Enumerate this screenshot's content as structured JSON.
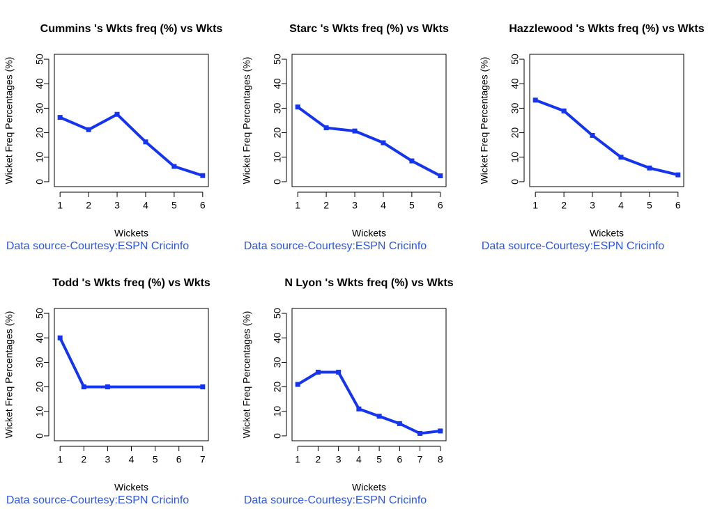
{
  "chart_data": [
    {
      "type": "line",
      "title": "Cummins 's Wkts freq (%) vs Wkts",
      "x_label": "Wickets",
      "y_label": "Wicket Freq Percentages (%)",
      "caption": "Data source-Courtesy:ESPN Cricinfo",
      "x": [
        1,
        2,
        3,
        4,
        5,
        6
      ],
      "series": [
        {
          "name": "Cummins",
          "color": "#1534f0",
          "values": [
            26.25,
            21.25,
            27.5,
            16.25,
            6.25,
            2.5
          ]
        }
      ],
      "xlim": [
        0.8,
        6.2
      ],
      "xticks": [
        1,
        2,
        3,
        4,
        5,
        6
      ],
      "ylim": [
        -2,
        52
      ],
      "yticks": [
        0,
        10,
        20,
        30,
        40,
        50
      ]
    },
    {
      "type": "line",
      "title": "Starc 's Wkts freq (%) vs Wkts",
      "x_label": "Wickets",
      "y_label": "Wicket Freq Percentages (%)",
      "caption": "Data source-Courtesy:ESPN Cricinfo",
      "x": [
        1,
        2,
        3,
        4,
        5,
        6
      ],
      "series": [
        {
          "name": "Starc",
          "color": "#1534f0",
          "values": [
            30.5,
            22,
            20.7,
            15.9,
            8.5,
            2.4
          ]
        }
      ],
      "xlim": [
        0.8,
        6.2
      ],
      "xticks": [
        1,
        2,
        3,
        4,
        5,
        6
      ],
      "ylim": [
        -2,
        52
      ],
      "yticks": [
        0,
        10,
        20,
        30,
        40,
        50
      ]
    },
    {
      "type": "line",
      "title": "Hazzlewood 's Wkts freq (%) vs Wkts",
      "x_label": "Wickets",
      "y_label": "Wicket Freq Percentages (%)",
      "caption": "Data source-Courtesy:ESPN Cricinfo",
      "x": [
        1,
        2,
        3,
        4,
        5,
        6
      ],
      "series": [
        {
          "name": "Hazzlewood",
          "color": "#1534f0",
          "values": [
            33.3,
            28.9,
            18.9,
            10,
            5.6,
            2.8
          ]
        }
      ],
      "xlim": [
        0.8,
        6.2
      ],
      "xticks": [
        1,
        2,
        3,
        4,
        5,
        6
      ],
      "ylim": [
        -2,
        52
      ],
      "yticks": [
        0,
        10,
        20,
        30,
        40,
        50
      ]
    },
    {
      "type": "line",
      "title": "Todd 's Wkts freq (%) vs Wkts",
      "x_label": "Wickets",
      "y_label": "Wicket Freq Percentages (%)",
      "caption": "Data source-Courtesy:ESPN Cricinfo",
      "x": [
        1,
        2,
        3,
        7
      ],
      "series": [
        {
          "name": "Todd",
          "color": "#1534f0",
          "values": [
            40,
            20,
            20,
            20
          ]
        }
      ],
      "xlim": [
        0.76,
        7.24
      ],
      "xticks": [
        1,
        2,
        3,
        4,
        5,
        6,
        7
      ],
      "ylim": [
        -2,
        52
      ],
      "yticks": [
        0,
        10,
        20,
        30,
        40,
        50
      ]
    },
    {
      "type": "line",
      "title": "N Lyon 's Wkts freq (%) vs Wkts",
      "x_label": "Wickets",
      "y_label": "Wicket Freq Percentages (%)",
      "caption": "Data source-Courtesy:ESPN Cricinfo",
      "x": [
        1,
        2,
        3,
        4,
        5,
        6,
        7,
        8
      ],
      "series": [
        {
          "name": "N Lyon",
          "color": "#1534f0",
          "values": [
            21,
            26,
            26,
            11,
            8,
            5,
            1,
            2
          ]
        }
      ],
      "xlim": [
        0.72,
        8.28
      ],
      "xticks": [
        1,
        2,
        3,
        4,
        5,
        6,
        7,
        8
      ],
      "ylim": [
        -2,
        52
      ],
      "yticks": [
        0,
        10,
        20,
        30,
        40,
        50
      ]
    }
  ]
}
